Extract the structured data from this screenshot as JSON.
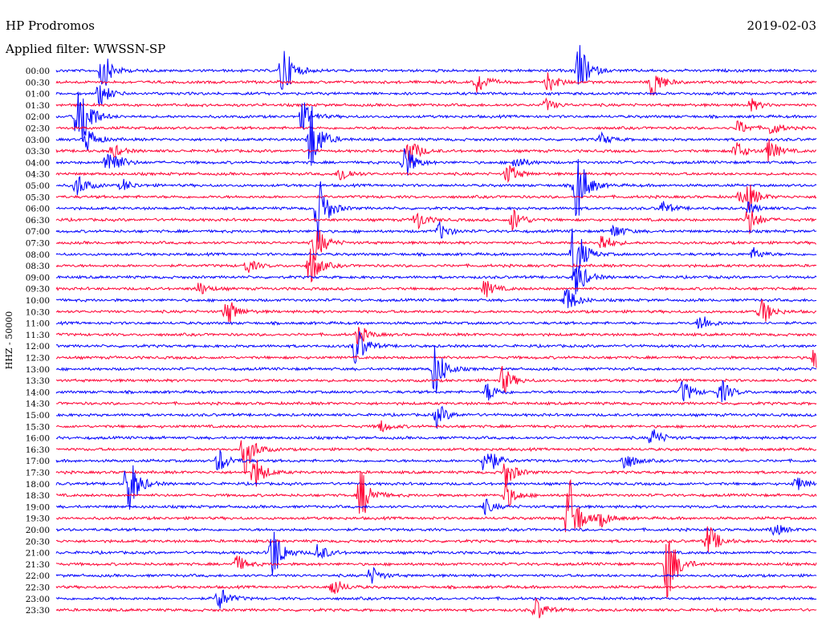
{
  "header": {
    "station": "HP Prodromos",
    "date": "2019-02-03",
    "filter": "Applied filter: WWSSN-SP"
  },
  "chart_data": {
    "type": "line",
    "title": "HP Prodromos",
    "subtitle": "Applied filter: WWSSN-SP",
    "date": "2019-02-03",
    "ylabel": "HHZ - 50000",
    "row_labels": [
      "00:00",
      "00:30",
      "01:00",
      "01:30",
      "02:00",
      "02:30",
      "03:00",
      "03:30",
      "04:00",
      "04:30",
      "05:00",
      "05:30",
      "06:00",
      "06:30",
      "07:00",
      "07:30",
      "08:00",
      "08:30",
      "09:00",
      "09:30",
      "10:00",
      "10:30",
      "11:00",
      "11:30",
      "12:00",
      "12:30",
      "13:00",
      "13:30",
      "14:00",
      "14:30",
      "15:00",
      "15:30",
      "16:00",
      "16:30",
      "17:00",
      "17:30",
      "18:00",
      "18:30",
      "19:00",
      "19:30",
      "20:00",
      "20:30",
      "21:00",
      "21:30",
      "22:00",
      "22:30",
      "23:00",
      "23:30"
    ],
    "series_colors": [
      "#0000ff",
      "#ff0033"
    ],
    "x_range_minutes": [
      0,
      30
    ],
    "events": [
      {
        "row": 0,
        "minute": 1.7,
        "amp": 40
      },
      {
        "row": 0,
        "minute": 8.8,
        "amp": 60
      },
      {
        "row": 0,
        "minute": 20.5,
        "amp": 55
      },
      {
        "row": 1,
        "minute": 16.5,
        "amp": 25
      },
      {
        "row": 1,
        "minute": 19.3,
        "amp": 20
      },
      {
        "row": 1,
        "minute": 23.4,
        "amp": 35
      },
      {
        "row": 2,
        "minute": 1.6,
        "amp": 25
      },
      {
        "row": 3,
        "minute": 19.2,
        "amp": 12
      },
      {
        "row": 3,
        "minute": 27.3,
        "amp": 12
      },
      {
        "row": 4,
        "minute": 0.7,
        "amp": 45
      },
      {
        "row": 4,
        "minute": 0.9,
        "amp": 45
      },
      {
        "row": 4,
        "minute": 9.6,
        "amp": 30
      },
      {
        "row": 5,
        "minute": 28.1,
        "amp": 14
      },
      {
        "row": 5,
        "minute": 26.8,
        "amp": 15
      },
      {
        "row": 6,
        "minute": 1.1,
        "amp": 25
      },
      {
        "row": 6,
        "minute": 21.4,
        "amp": 12
      },
      {
        "row": 6,
        "minute": 9.9,
        "amp": 80
      },
      {
        "row": 7,
        "minute": 2.1,
        "amp": 14
      },
      {
        "row": 7,
        "minute": 13.8,
        "amp": 30
      },
      {
        "row": 7,
        "minute": 26.7,
        "amp": 20
      },
      {
        "row": 7,
        "minute": 28.0,
        "amp": 25
      },
      {
        "row": 8,
        "minute": 1.9,
        "amp": 25
      },
      {
        "row": 8,
        "minute": 2.1,
        "amp": 14
      },
      {
        "row": 8,
        "minute": 13.6,
        "amp": 40
      },
      {
        "row": 8,
        "minute": 18.0,
        "amp": 15
      },
      {
        "row": 9,
        "minute": 17.7,
        "amp": 22
      },
      {
        "row": 9,
        "minute": 11.1,
        "amp": 18
      },
      {
        "row": 10,
        "minute": 0.7,
        "amp": 25
      },
      {
        "row": 10,
        "minute": 2.5,
        "amp": 12
      },
      {
        "row": 10,
        "minute": 20.4,
        "amp": 80
      },
      {
        "row": 11,
        "minute": 26.9,
        "amp": 15
      },
      {
        "row": 11,
        "minute": 27.2,
        "amp": 20
      },
      {
        "row": 12,
        "minute": 10.2,
        "amp": 70
      },
      {
        "row": 12,
        "minute": 23.8,
        "amp": 14
      },
      {
        "row": 12,
        "minute": 27.2,
        "amp": 12
      },
      {
        "row": 13,
        "minute": 14.1,
        "amp": 20
      },
      {
        "row": 13,
        "minute": 17.9,
        "amp": 25
      },
      {
        "row": 13,
        "minute": 27.2,
        "amp": 30
      },
      {
        "row": 14,
        "minute": 15.0,
        "amp": 18
      },
      {
        "row": 14,
        "minute": 21.9,
        "amp": 15
      },
      {
        "row": 15,
        "minute": 10.1,
        "amp": 40
      },
      {
        "row": 15,
        "minute": 21.4,
        "amp": 20
      },
      {
        "row": 16,
        "minute": 20.3,
        "amp": 70
      },
      {
        "row": 16,
        "minute": 27.4,
        "amp": 12
      },
      {
        "row": 17,
        "minute": 9.9,
        "amp": 40
      },
      {
        "row": 17,
        "minute": 7.4,
        "amp": 15
      },
      {
        "row": 18,
        "minute": 20.4,
        "amp": 40
      },
      {
        "row": 19,
        "minute": 5.5,
        "amp": 14
      },
      {
        "row": 19,
        "minute": 16.8,
        "amp": 18
      },
      {
        "row": 20,
        "minute": 20.0,
        "amp": 30
      },
      {
        "row": 21,
        "minute": 6.6,
        "amp": 30
      },
      {
        "row": 21,
        "minute": 27.7,
        "amp": 30
      },
      {
        "row": 22,
        "minute": 25.3,
        "amp": 20
      },
      {
        "row": 23,
        "minute": 11.8,
        "amp": 20
      },
      {
        "row": 24,
        "minute": 11.7,
        "amp": 45
      },
      {
        "row": 25,
        "minute": 29.8,
        "amp": 25
      },
      {
        "row": 26,
        "minute": 14.8,
        "amp": 60
      },
      {
        "row": 27,
        "minute": 17.5,
        "amp": 30
      },
      {
        "row": 28,
        "minute": 16.9,
        "amp": 20
      },
      {
        "row": 28,
        "minute": 24.6,
        "amp": 25
      },
      {
        "row": 28,
        "minute": 26.1,
        "amp": 25
      },
      {
        "row": 30,
        "minute": 14.9,
        "amp": 25
      },
      {
        "row": 31,
        "minute": 12.7,
        "amp": 12
      },
      {
        "row": 32,
        "minute": 23.4,
        "amp": 20
      },
      {
        "row": 33,
        "minute": 7.3,
        "amp": 50
      },
      {
        "row": 34,
        "minute": 6.3,
        "amp": 25
      },
      {
        "row": 34,
        "minute": 16.8,
        "amp": 40
      },
      {
        "row": 34,
        "minute": 22.3,
        "amp": 20
      },
      {
        "row": 35,
        "minute": 7.7,
        "amp": 35
      },
      {
        "row": 35,
        "minute": 17.6,
        "amp": 30
      },
      {
        "row": 36,
        "minute": 2.7,
        "amp": 70
      },
      {
        "row": 36,
        "minute": 29.1,
        "amp": 14
      },
      {
        "row": 37,
        "minute": 11.9,
        "amp": 55
      },
      {
        "row": 37,
        "minute": 17.6,
        "amp": 30
      },
      {
        "row": 38,
        "minute": 16.8,
        "amp": 15
      },
      {
        "row": 39,
        "minute": 20.1,
        "amp": 90
      },
      {
        "row": 39,
        "minute": 21.4,
        "amp": 15
      },
      {
        "row": 40,
        "minute": 28.2,
        "amp": 14
      },
      {
        "row": 41,
        "minute": 25.6,
        "amp": 35
      },
      {
        "row": 42,
        "minute": 8.4,
        "amp": 60
      },
      {
        "row": 42,
        "minute": 10.2,
        "amp": 20
      },
      {
        "row": 43,
        "minute": 7.0,
        "amp": 18
      },
      {
        "row": 43,
        "minute": 24.0,
        "amp": 80
      },
      {
        "row": 44,
        "minute": 12.3,
        "amp": 18
      },
      {
        "row": 45,
        "minute": 10.8,
        "amp": 20
      },
      {
        "row": 46,
        "minute": 6.3,
        "amp": 25
      },
      {
        "row": 47,
        "minute": 18.8,
        "amp": 25
      }
    ],
    "grid": false,
    "legend": "none"
  }
}
